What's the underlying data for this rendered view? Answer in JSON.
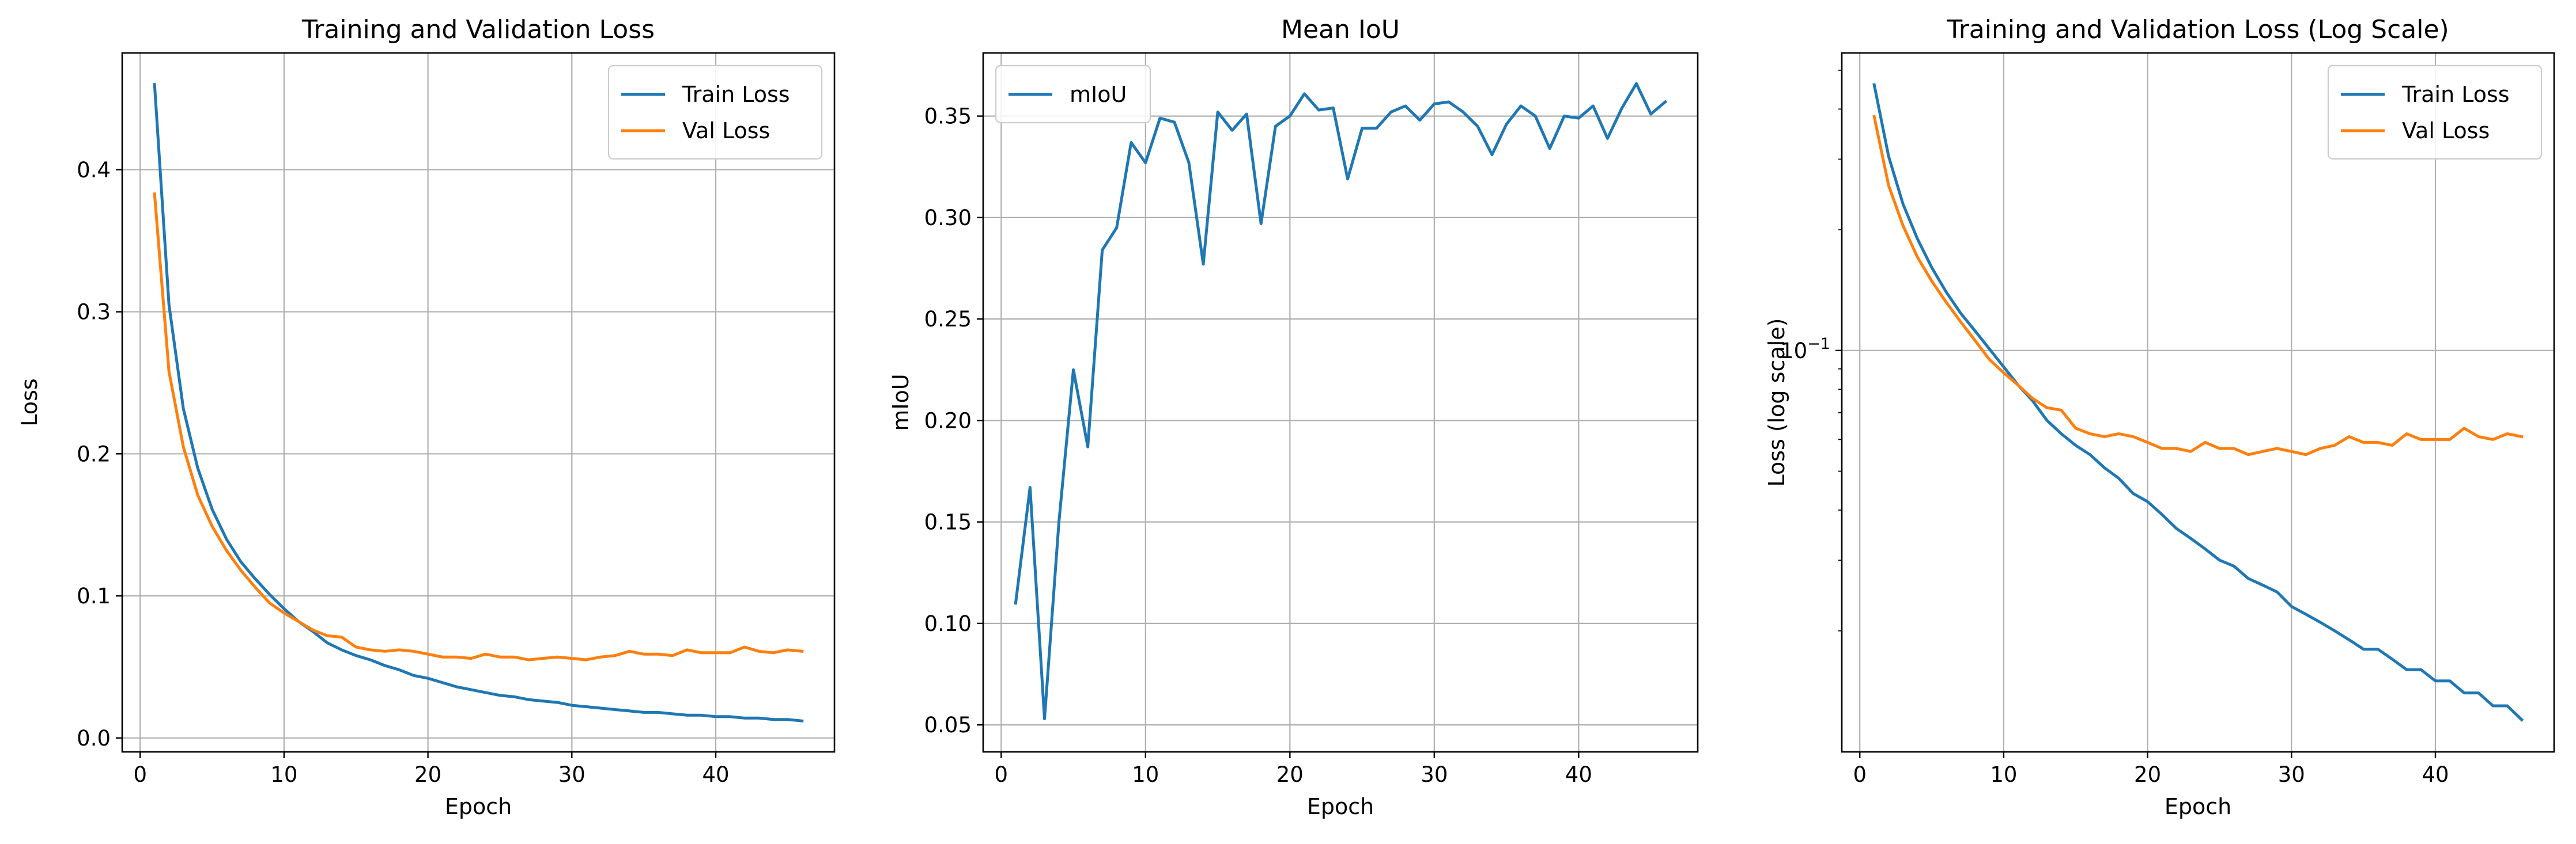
{
  "chart_data": [
    {
      "type": "line",
      "title": "Training and Validation Loss",
      "xlabel": "Epoch",
      "ylabel": "Loss",
      "yscale": "linear",
      "xlim": [
        -1.25,
        48.25
      ],
      "ylim": [
        -0.0098,
        0.4822
      ],
      "xticks": [
        0,
        10,
        20,
        30,
        40
      ],
      "yticks": [
        0.0,
        0.1,
        0.2,
        0.3,
        0.4
      ],
      "ytick_labels": [
        "0.0",
        "0.1",
        "0.2",
        "0.3",
        "0.4"
      ],
      "grid": true,
      "legend_position": "top-right",
      "x": [
        1,
        2,
        3,
        4,
        5,
        6,
        7,
        8,
        9,
        10,
        11,
        12,
        13,
        14,
        15,
        16,
        17,
        18,
        19,
        20,
        21,
        22,
        23,
        24,
        25,
        26,
        27,
        28,
        29,
        30,
        31,
        32,
        33,
        34,
        35,
        36,
        37,
        38,
        39,
        40,
        41,
        42,
        43,
        44,
        45,
        46
      ],
      "series": [
        {
          "name": "Train Loss",
          "color": "#1f77b4",
          "values": [
            0.46,
            0.305,
            0.232,
            0.19,
            0.161,
            0.14,
            0.124,
            0.112,
            0.101,
            0.091,
            0.082,
            0.075,
            0.067,
            0.062,
            0.058,
            0.055,
            0.051,
            0.048,
            0.044,
            0.042,
            0.039,
            0.036,
            0.034,
            0.032,
            0.03,
            0.029,
            0.027,
            0.026,
            0.025,
            0.023,
            0.022,
            0.021,
            0.02,
            0.019,
            0.018,
            0.018,
            0.017,
            0.016,
            0.016,
            0.015,
            0.015,
            0.014,
            0.014,
            0.013,
            0.013,
            0.012
          ]
        },
        {
          "name": "Val Loss",
          "color": "#ff7f0e",
          "values": [
            0.383,
            0.258,
            0.205,
            0.171,
            0.149,
            0.132,
            0.118,
            0.106,
            0.095,
            0.088,
            0.082,
            0.076,
            0.072,
            0.071,
            0.064,
            0.062,
            0.061,
            0.062,
            0.061,
            0.059,
            0.057,
            0.057,
            0.056,
            0.059,
            0.057,
            0.057,
            0.055,
            0.056,
            0.057,
            0.056,
            0.055,
            0.057,
            0.058,
            0.061,
            0.059,
            0.059,
            0.058,
            0.062,
            0.06,
            0.06,
            0.06,
            0.064,
            0.061,
            0.06,
            0.062,
            0.061
          ]
        }
      ]
    },
    {
      "type": "line",
      "title": "Mean IoU",
      "xlabel": "Epoch",
      "ylabel": "mIoU",
      "yscale": "linear",
      "xlim": [
        -1.25,
        48.25
      ],
      "ylim": [
        0.0367,
        0.3811
      ],
      "xticks": [
        0,
        10,
        20,
        30,
        40
      ],
      "yticks": [
        0.05,
        0.1,
        0.15,
        0.2,
        0.25,
        0.3,
        0.35
      ],
      "ytick_labels": [
        "0.05",
        "0.10",
        "0.15",
        "0.20",
        "0.25",
        "0.30",
        "0.35"
      ],
      "grid": true,
      "legend_position": "top-left",
      "x": [
        1,
        2,
        3,
        4,
        5,
        6,
        7,
        8,
        9,
        10,
        11,
        12,
        13,
        14,
        15,
        16,
        17,
        18,
        19,
        20,
        21,
        22,
        23,
        24,
        25,
        26,
        27,
        28,
        29,
        30,
        31,
        32,
        33,
        34,
        35,
        36,
        37,
        38,
        39,
        40,
        41,
        42,
        43,
        44,
        45,
        46
      ],
      "series": [
        {
          "name": "mIoU",
          "color": "#1f77b4",
          "values": [
            0.11,
            0.167,
            0.053,
            0.15,
            0.225,
            0.187,
            0.284,
            0.295,
            0.337,
            0.327,
            0.349,
            0.347,
            0.327,
            0.277,
            0.352,
            0.343,
            0.351,
            0.297,
            0.345,
            0.35,
            0.361,
            0.353,
            0.354,
            0.319,
            0.344,
            0.344,
            0.352,
            0.355,
            0.348,
            0.356,
            0.357,
            0.352,
            0.345,
            0.331,
            0.346,
            0.355,
            0.35,
            0.334,
            0.35,
            0.349,
            0.355,
            0.339,
            0.354,
            0.366,
            0.351,
            0.357
          ]
        }
      ]
    },
    {
      "type": "line",
      "title": "Training and Validation Loss (Log Scale)",
      "xlabel": "Epoch",
      "ylabel": "Loss (log scale)",
      "yscale": "log",
      "xlim": [
        -1.25,
        48.25
      ],
      "ylim": [
        0.00998,
        0.552
      ],
      "xticks": [
        0,
        10,
        20,
        30,
        40
      ],
      "yticks": [
        0.1
      ],
      "ytick_labels": [
        "10"
      ],
      "ytick_label_exponent": "−1",
      "grid": true,
      "legend_position": "top-right",
      "x": [
        1,
        2,
        3,
        4,
        5,
        6,
        7,
        8,
        9,
        10,
        11,
        12,
        13,
        14,
        15,
        16,
        17,
        18,
        19,
        20,
        21,
        22,
        23,
        24,
        25,
        26,
        27,
        28,
        29,
        30,
        31,
        32,
        33,
        34,
        35,
        36,
        37,
        38,
        39,
        40,
        41,
        42,
        43,
        44,
        45,
        46
      ],
      "series": [
        {
          "name": "Train Loss",
          "color": "#1f77b4",
          "values": [
            0.46,
            0.305,
            0.232,
            0.19,
            0.161,
            0.14,
            0.124,
            0.112,
            0.101,
            0.091,
            0.082,
            0.075,
            0.067,
            0.062,
            0.058,
            0.055,
            0.051,
            0.048,
            0.044,
            0.042,
            0.039,
            0.036,
            0.034,
            0.032,
            0.03,
            0.029,
            0.027,
            0.026,
            0.025,
            0.023,
            0.022,
            0.021,
            0.02,
            0.019,
            0.018,
            0.018,
            0.017,
            0.016,
            0.016,
            0.015,
            0.015,
            0.014,
            0.014,
            0.013,
            0.013,
            0.012
          ]
        },
        {
          "name": "Val Loss",
          "color": "#ff7f0e",
          "values": [
            0.383,
            0.258,
            0.205,
            0.171,
            0.149,
            0.132,
            0.118,
            0.106,
            0.095,
            0.088,
            0.082,
            0.076,
            0.072,
            0.071,
            0.064,
            0.062,
            0.061,
            0.062,
            0.061,
            0.059,
            0.057,
            0.057,
            0.056,
            0.059,
            0.057,
            0.057,
            0.055,
            0.056,
            0.057,
            0.056,
            0.055,
            0.057,
            0.058,
            0.061,
            0.059,
            0.059,
            0.058,
            0.062,
            0.06,
            0.06,
            0.06,
            0.064,
            0.061,
            0.06,
            0.062,
            0.061
          ]
        }
      ]
    }
  ]
}
